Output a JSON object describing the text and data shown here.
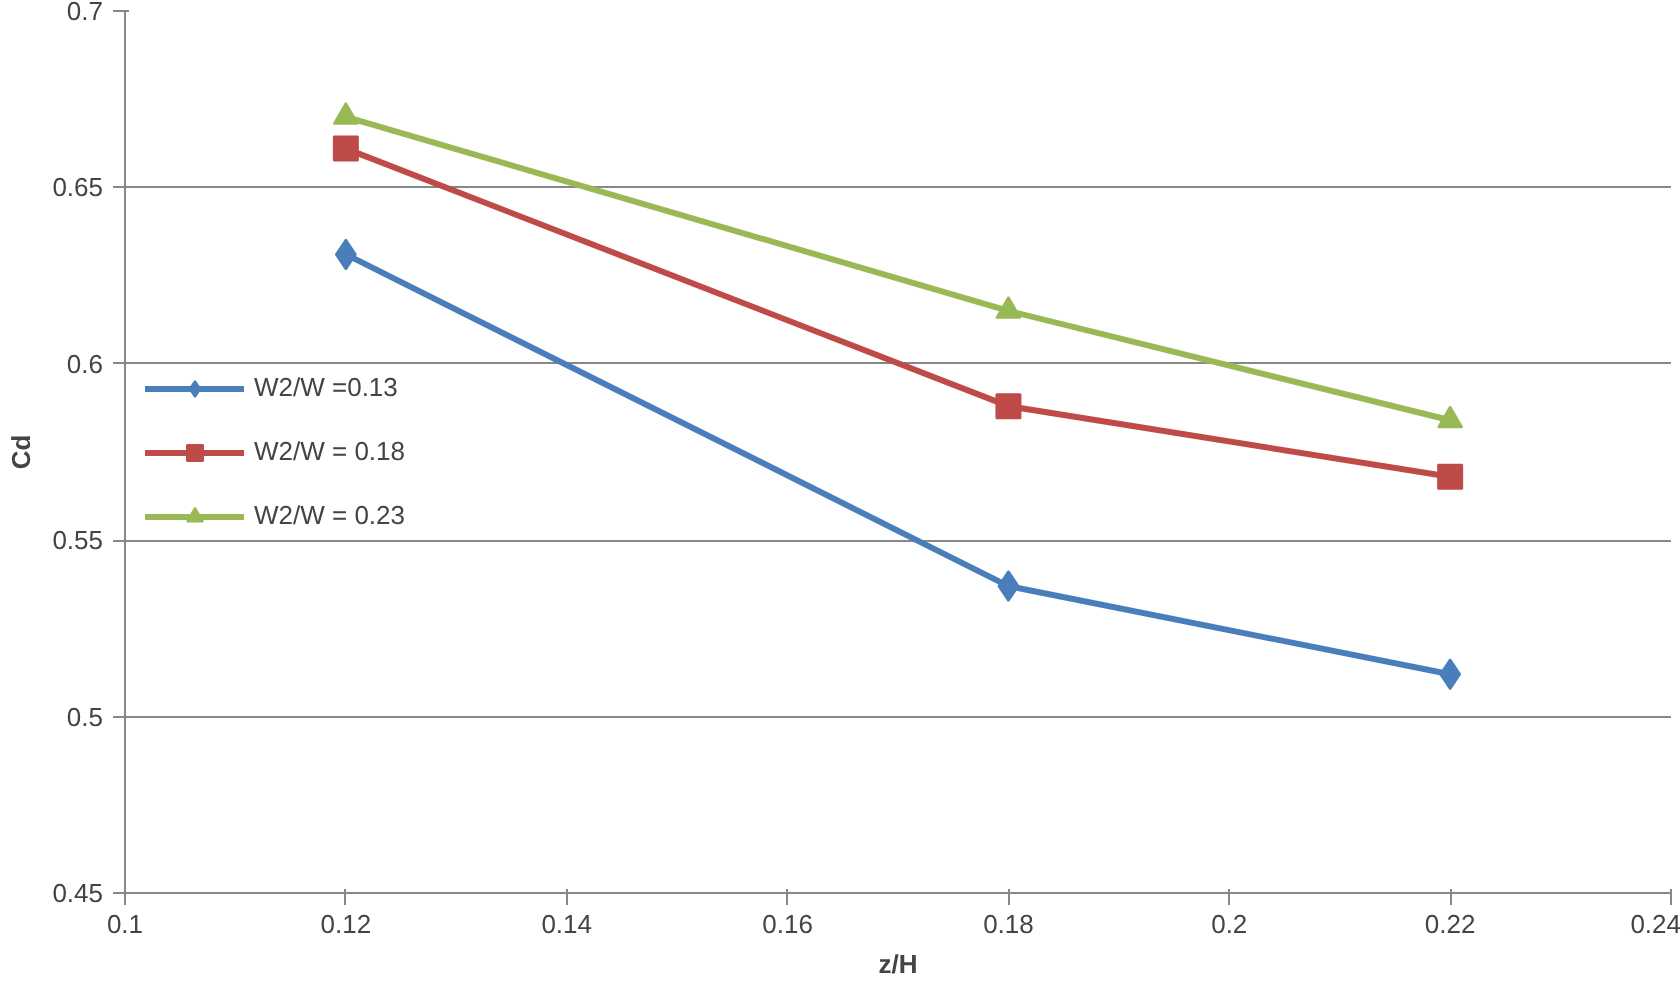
{
  "chart_data": {
    "type": "line",
    "xlabel": "z/H",
    "ylabel": "Cd",
    "x": [
      0.12,
      0.18,
      0.22
    ],
    "series": [
      {
        "name": "W2/W =0.13",
        "color": "#4a7ebb",
        "marker": "diamond",
        "values": [
          0.631,
          0.537,
          0.512
        ]
      },
      {
        "name": "W2/W = 0.18",
        "color": "#be4b48",
        "marker": "square",
        "values": [
          0.661,
          0.588,
          0.568
        ]
      },
      {
        "name": "W2/W = 0.23",
        "color": "#98b954",
        "marker": "triangle",
        "values": [
          0.67,
          0.615,
          0.584
        ]
      }
    ],
    "xlim": [
      0.1,
      0.24
    ],
    "xticks": [
      0.1,
      0.12,
      0.14,
      0.16,
      0.18,
      0.2,
      0.22,
      0.24
    ],
    "ylim": [
      0.45,
      0.7
    ],
    "yticks": [
      0.45,
      0.5,
      0.55,
      0.6,
      0.65,
      0.7
    ],
    "grid": "y",
    "legend": "left",
    "line_style": "solid"
  }
}
